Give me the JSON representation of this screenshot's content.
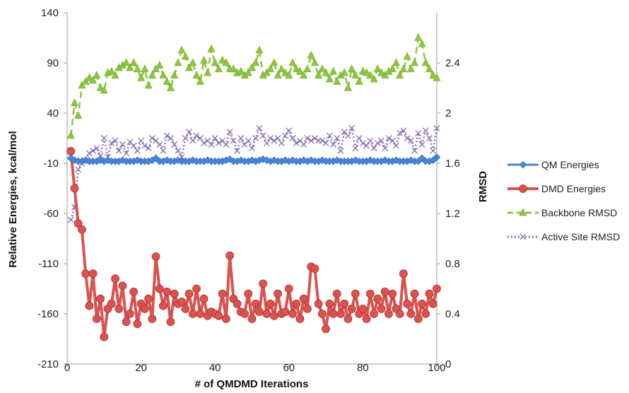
{
  "chart_data": {
    "type": "line",
    "title": "",
    "xlabel": "# of QMDMD Iterations",
    "ylabel_left": "Relative Energies, kcal/mol",
    "ylabel_right": "RMSD",
    "xlim": [
      0,
      100
    ],
    "ylim_left": [
      -210,
      140
    ],
    "ylim_right": [
      0,
      2.8
    ],
    "x_ticks": [
      "0",
      "20",
      "40",
      "60",
      "80",
      "100"
    ],
    "y_left_ticks": [
      "140",
      "90",
      "40",
      "-10",
      "-60",
      "-110",
      "-160",
      "-210"
    ],
    "y_right_ticks": [
      "2.4",
      "2",
      "1.6",
      "1.2",
      "0.8",
      "0.4",
      "0"
    ],
    "grid": false,
    "legend_position": "right",
    "series": [
      {
        "name": "QM Energies",
        "axis": "left",
        "color": "#4a86d4",
        "marker": "diamond",
        "x": [
          1,
          2,
          3,
          4,
          5,
          6,
          7,
          8,
          9,
          10,
          11,
          12,
          13,
          14,
          15,
          16,
          17,
          18,
          19,
          20,
          21,
          22,
          23,
          24,
          25,
          26,
          27,
          28,
          29,
          30,
          31,
          32,
          33,
          34,
          35,
          36,
          37,
          38,
          39,
          40,
          41,
          42,
          43,
          44,
          45,
          46,
          47,
          48,
          49,
          50,
          51,
          52,
          53,
          54,
          55,
          56,
          57,
          58,
          59,
          60,
          61,
          62,
          63,
          64,
          65,
          66,
          67,
          68,
          69,
          70,
          71,
          72,
          73,
          74,
          75,
          76,
          77,
          78,
          79,
          80,
          81,
          82,
          83,
          84,
          85,
          86,
          87,
          88,
          89,
          90,
          91,
          92,
          93,
          94,
          95,
          96,
          97,
          98,
          99,
          100
        ],
        "values": [
          -5,
          -7,
          -8,
          -8,
          -7,
          -8,
          -8,
          -8,
          -7,
          -8,
          -7,
          -8,
          -8,
          -8,
          -7,
          -8,
          -8,
          -8,
          -7,
          -8,
          -8,
          -8,
          -7,
          -5,
          -8,
          -8,
          -7,
          -8,
          -8,
          -7,
          -8,
          -8,
          -8,
          -7,
          -8,
          -8,
          -8,
          -7,
          -8,
          -8,
          -8,
          -8,
          -7,
          -6,
          -8,
          -8,
          -7,
          -8,
          -8,
          -7,
          -8,
          -7,
          -6,
          -7,
          -8,
          -7,
          -8,
          -8,
          -7,
          -8,
          -7,
          -8,
          -8,
          -7,
          -8,
          -7,
          -8,
          -8,
          -7,
          -8,
          -8,
          -8,
          -7,
          -8,
          -8,
          -8,
          -8,
          -7,
          -8,
          -8,
          -8,
          -7,
          -8,
          -8,
          -8,
          -7,
          -8,
          -8,
          -7,
          -8,
          -8,
          -8,
          -7,
          -8,
          -8,
          -5,
          -8,
          -8,
          -7,
          -4
        ]
      },
      {
        "name": "DMD Energies",
        "axis": "left",
        "color": "#d9534f",
        "marker": "circle",
        "x": [
          1,
          2,
          3,
          4,
          5,
          6,
          7,
          8,
          9,
          10,
          11,
          12,
          13,
          14,
          15,
          16,
          17,
          18,
          19,
          20,
          21,
          22,
          23,
          24,
          25,
          26,
          27,
          28,
          29,
          30,
          31,
          32,
          33,
          34,
          35,
          36,
          37,
          38,
          39,
          40,
          41,
          42,
          43,
          44,
          45,
          46,
          47,
          48,
          49,
          50,
          51,
          52,
          53,
          54,
          55,
          56,
          57,
          58,
          59,
          60,
          61,
          62,
          63,
          64,
          65,
          66,
          67,
          68,
          69,
          70,
          71,
          72,
          73,
          74,
          75,
          76,
          77,
          78,
          79,
          80,
          81,
          82,
          83,
          84,
          85,
          86,
          87,
          88,
          89,
          90,
          91,
          92,
          93,
          94,
          95,
          96,
          97,
          98,
          99,
          100
        ],
        "values": [
          2,
          -35,
          -70,
          -76,
          -120,
          -152,
          -120,
          -165,
          -145,
          -183,
          -155,
          -150,
          -125,
          -155,
          -132,
          -168,
          -160,
          -138,
          -170,
          -150,
          -155,
          -145,
          -165,
          -103,
          -135,
          -152,
          -138,
          -168,
          -140,
          -150,
          -148,
          -155,
          -140,
          -160,
          -135,
          -160,
          -145,
          -162,
          -158,
          -160,
          -162,
          -140,
          -165,
          -102,
          -145,
          -150,
          -158,
          -160,
          -140,
          -165,
          -150,
          -158,
          -130,
          -160,
          -150,
          -162,
          -140,
          -160,
          -158,
          -135,
          -160,
          -150,
          -165,
          -145,
          -155,
          -113,
          -115,
          -150,
          -160,
          -175,
          -150,
          -160,
          -140,
          -160,
          -150,
          -165,
          -155,
          -140,
          -160,
          -155,
          -165,
          -140,
          -160,
          -145,
          -155,
          -138,
          -160,
          -140,
          -155,
          -160,
          -120,
          -150,
          -160,
          -140,
          -165,
          -150,
          -160,
          -140,
          -150,
          -135
        ]
      },
      {
        "name": "Backbone RMSD",
        "axis": "right",
        "color": "#8dc63f",
        "marker": "triangle",
        "dashed": true,
        "x": [
          1,
          2,
          3,
          4,
          5,
          6,
          7,
          8,
          9,
          10,
          11,
          12,
          13,
          14,
          15,
          16,
          17,
          18,
          19,
          20,
          21,
          22,
          23,
          24,
          25,
          26,
          27,
          28,
          29,
          30,
          31,
          32,
          33,
          34,
          35,
          36,
          37,
          38,
          39,
          40,
          41,
          42,
          43,
          44,
          45,
          46,
          47,
          48,
          49,
          50,
          51,
          52,
          53,
          54,
          55,
          56,
          57,
          58,
          59,
          60,
          61,
          62,
          63,
          64,
          65,
          66,
          67,
          68,
          69,
          70,
          71,
          72,
          73,
          74,
          75,
          76,
          77,
          78,
          79,
          80,
          81,
          82,
          83,
          84,
          85,
          86,
          87,
          88,
          89,
          90,
          91,
          92,
          93,
          94,
          95,
          96,
          97,
          98,
          99,
          100
        ],
        "values": [
          1.82,
          2.08,
          1.98,
          2.22,
          2.25,
          2.28,
          2.26,
          2.3,
          2.2,
          2.18,
          2.32,
          2.33,
          2.3,
          2.36,
          2.38,
          2.4,
          2.36,
          2.4,
          2.35,
          2.28,
          2.35,
          2.22,
          2.3,
          2.35,
          2.38,
          2.3,
          2.25,
          2.2,
          2.3,
          2.4,
          2.5,
          2.45,
          2.36,
          2.4,
          2.3,
          2.25,
          2.42,
          2.32,
          2.51,
          2.4,
          2.35,
          2.42,
          2.4,
          2.35,
          2.35,
          2.32,
          2.33,
          2.3,
          2.32,
          2.36,
          2.4,
          2.5,
          2.3,
          2.32,
          2.35,
          2.4,
          2.3,
          2.35,
          2.32,
          2.3,
          2.4,
          2.35,
          2.33,
          2.3,
          2.35,
          2.46,
          2.4,
          2.3,
          2.35,
          2.32,
          2.27,
          2.33,
          2.25,
          2.3,
          2.32,
          2.2,
          2.35,
          2.3,
          2.25,
          2.33,
          2.32,
          2.3,
          2.27,
          2.35,
          2.32,
          2.3,
          2.33,
          2.35,
          2.4,
          2.3,
          2.35,
          2.45,
          2.35,
          2.4,
          2.6,
          2.55,
          2.4,
          2.35,
          2.3,
          2.28
        ]
      },
      {
        "name": "Active Site RMSD",
        "axis": "right",
        "color": "#8a6fb5",
        "marker": "x",
        "dotted": true,
        "x": [
          1,
          2,
          3,
          4,
          5,
          6,
          7,
          8,
          9,
          10,
          11,
          12,
          13,
          14,
          15,
          16,
          17,
          18,
          19,
          20,
          21,
          22,
          23,
          24,
          25,
          26,
          27,
          28,
          29,
          30,
          31,
          32,
          33,
          34,
          35,
          36,
          37,
          38,
          39,
          40,
          41,
          42,
          43,
          44,
          45,
          46,
          47,
          48,
          49,
          50,
          51,
          52,
          53,
          54,
          55,
          56,
          57,
          58,
          59,
          60,
          61,
          62,
          63,
          64,
          65,
          66,
          67,
          68,
          69,
          70,
          71,
          72,
          73,
          74,
          75,
          76,
          77,
          78,
          79,
          80,
          81,
          82,
          83,
          84,
          85,
          86,
          87,
          88,
          89,
          90,
          91,
          92,
          93,
          94,
          95,
          96,
          97,
          98,
          99,
          100
        ],
        "values": [
          1.15,
          1.25,
          1.55,
          1.6,
          1.62,
          1.68,
          1.7,
          1.72,
          1.66,
          1.8,
          1.65,
          1.76,
          1.78,
          1.7,
          1.75,
          1.68,
          1.77,
          1.74,
          1.7,
          1.78,
          1.74,
          1.72,
          1.8,
          1.78,
          1.75,
          1.7,
          1.82,
          1.8,
          1.75,
          1.7,
          1.65,
          1.8,
          1.85,
          1.78,
          1.82,
          1.8,
          1.76,
          1.78,
          1.75,
          1.8,
          1.76,
          1.78,
          1.75,
          1.85,
          1.78,
          1.7,
          1.8,
          1.75,
          1.78,
          1.72,
          1.8,
          1.88,
          1.82,
          1.76,
          1.8,
          1.78,
          1.8,
          1.76,
          1.82,
          1.86,
          1.8,
          1.76,
          1.78,
          1.75,
          1.8,
          1.78,
          1.8,
          1.78,
          1.78,
          1.76,
          1.82,
          1.75,
          1.8,
          1.7,
          1.85,
          1.82,
          1.88,
          1.72,
          1.8,
          1.76,
          1.74,
          1.78,
          1.72,
          1.76,
          1.78,
          1.72,
          1.8,
          1.78,
          1.74,
          1.84,
          1.86,
          1.8,
          1.78,
          1.7,
          1.84,
          1.75,
          1.86,
          1.8,
          1.7,
          1.88
        ]
      }
    ]
  }
}
